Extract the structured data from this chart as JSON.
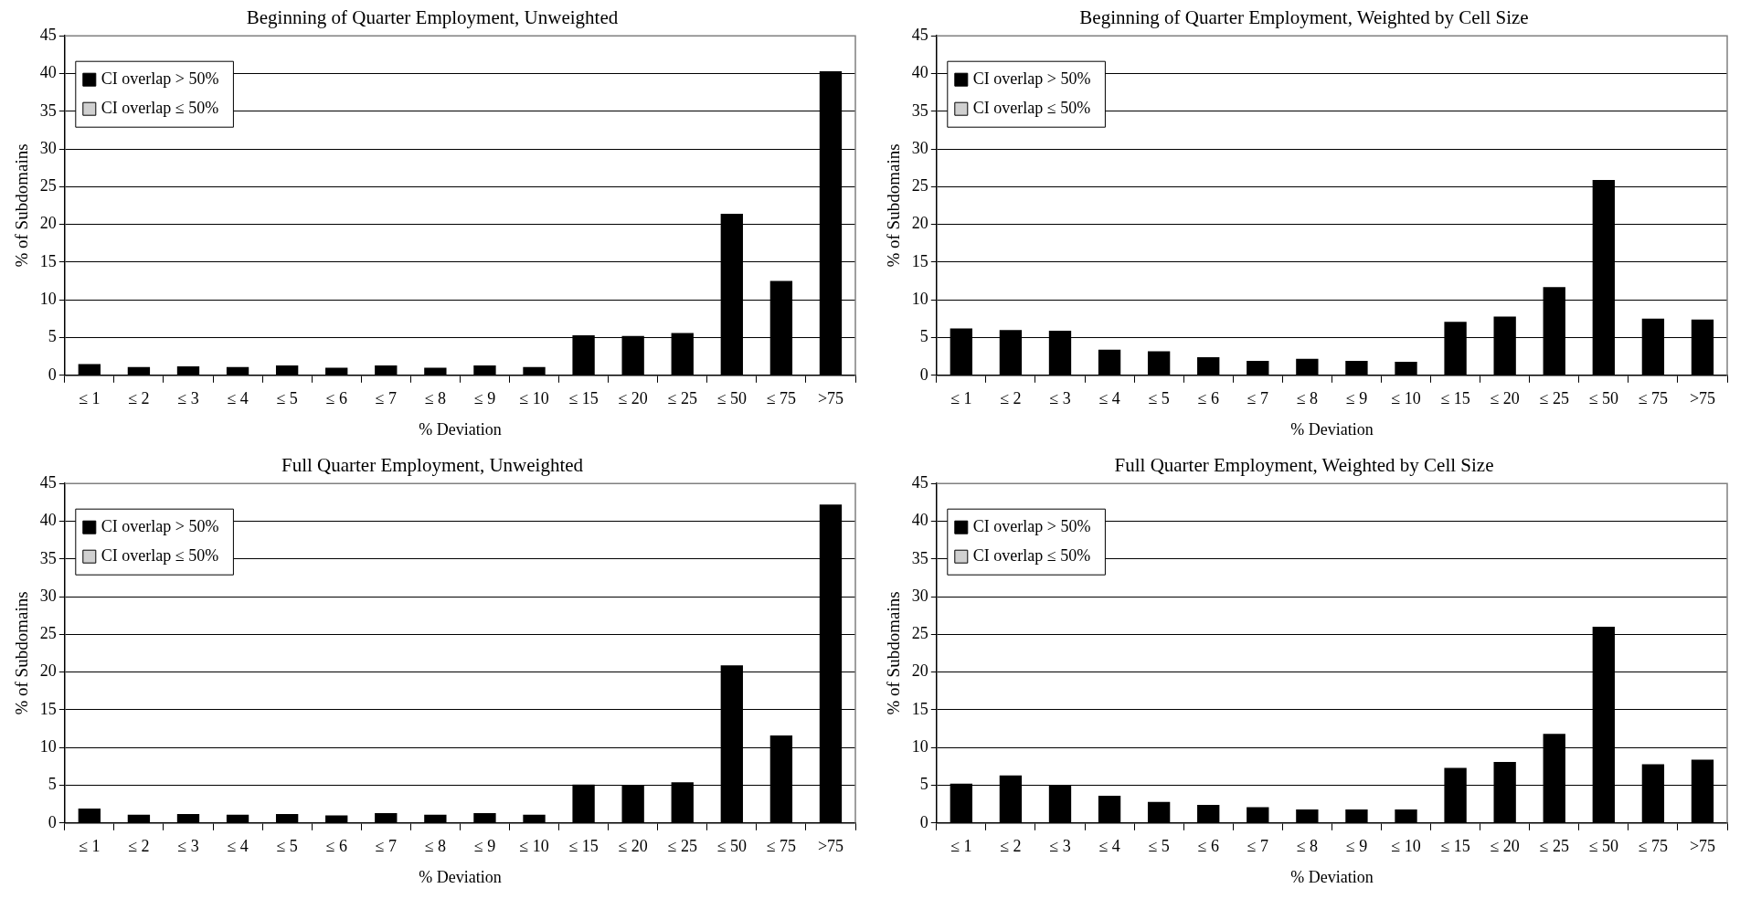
{
  "chart_data": [
    {
      "type": "bar",
      "title": "Beginning of Quarter Employment, Unweighted",
      "xlabel": "% Deviation",
      "ylabel": "% of Subdomains",
      "categories": [
        "≤ 1",
        "≤ 2",
        "≤ 3",
        "≤ 4",
        "≤ 5",
        "≤ 6",
        "≤ 7",
        "≤ 8",
        "≤ 9",
        "≤ 10",
        "≤ 15",
        "≤ 20",
        "≤ 25",
        "≤ 50",
        "≤ 75",
        ">75"
      ],
      "stacked": true,
      "series": [
        {
          "name": "CI overlap > 50%",
          "color": "#000000",
          "values": [
            1.5,
            1.1,
            1.2,
            1.1,
            1.3,
            1.0,
            1.3,
            1.0,
            1.3,
            1.1,
            5.3,
            5.2,
            5.6,
            21.4,
            12.5,
            40.3
          ]
        },
        {
          "name": "CI overlap ≤ 50%",
          "color": "#d0d0d0",
          "values": [
            0,
            0,
            0,
            0,
            0,
            0,
            0,
            0,
            0,
            0,
            0,
            0,
            0,
            0,
            0,
            0
          ]
        }
      ],
      "ylim": [
        0,
        45
      ],
      "yticks": [
        0,
        5,
        10,
        15,
        20,
        25,
        30,
        35,
        40,
        45
      ],
      "grid": "y",
      "legend": "top left"
    },
    {
      "type": "bar",
      "title": "Beginning of Quarter Employment, Weighted by Cell Size",
      "xlabel": "% Deviation",
      "ylabel": "% of Subdomains",
      "categories": [
        "≤ 1",
        "≤ 2",
        "≤ 3",
        "≤ 4",
        "≤ 5",
        "≤ 6",
        "≤ 7",
        "≤ 8",
        "≤ 9",
        "≤ 10",
        "≤ 15",
        "≤ 20",
        "≤ 25",
        "≤ 50",
        "≤ 75",
        ">75"
      ],
      "stacked": true,
      "series": [
        {
          "name": "CI overlap > 50%",
          "color": "#000000",
          "values": [
            6.2,
            6.0,
            5.9,
            3.4,
            3.2,
            2.4,
            1.9,
            2.2,
            1.9,
            1.8,
            7.1,
            7.8,
            11.7,
            25.9,
            7.5,
            7.4
          ]
        },
        {
          "name": "CI overlap ≤ 50%",
          "color": "#d0d0d0",
          "values": [
            0,
            0,
            0,
            0,
            0,
            0,
            0,
            0,
            0,
            0,
            0,
            0,
            0,
            0,
            0,
            0
          ]
        }
      ],
      "ylim": [
        0,
        45
      ],
      "yticks": [
        0,
        5,
        10,
        15,
        20,
        25,
        30,
        35,
        40,
        45
      ],
      "grid": "y",
      "legend": "top left"
    },
    {
      "type": "bar",
      "title": "Full Quarter Employment, Unweighted",
      "xlabel": "% Deviation",
      "ylabel": "% of Subdomains",
      "categories": [
        "≤ 1",
        "≤ 2",
        "≤ 3",
        "≤ 4",
        "≤ 5",
        "≤ 6",
        "≤ 7",
        "≤ 8",
        "≤ 9",
        "≤ 10",
        "≤ 15",
        "≤ 20",
        "≤ 25",
        "≤ 50",
        "≤ 75",
        ">75"
      ],
      "stacked": true,
      "series": [
        {
          "name": "CI overlap > 50%",
          "color": "#000000",
          "values": [
            1.9,
            1.1,
            1.2,
            1.1,
            1.2,
            1.0,
            1.3,
            1.1,
            1.3,
            1.1,
            5.1,
            5.0,
            5.4,
            20.9,
            11.6,
            42.2
          ]
        },
        {
          "name": "CI overlap ≤ 50%",
          "color": "#d0d0d0",
          "values": [
            0,
            0,
            0,
            0,
            0,
            0,
            0,
            0,
            0,
            0,
            0,
            0,
            0,
            0,
            0,
            0
          ]
        }
      ],
      "ylim": [
        0,
        45
      ],
      "yticks": [
        0,
        5,
        10,
        15,
        20,
        25,
        30,
        35,
        40,
        45
      ],
      "grid": "y",
      "legend": "top left"
    },
    {
      "type": "bar",
      "title": "Full Quarter Employment, Weighted by Cell Size",
      "xlabel": "% Deviation",
      "ylabel": "% of Subdomains",
      "categories": [
        "≤ 1",
        "≤ 2",
        "≤ 3",
        "≤ 4",
        "≤ 5",
        "≤ 6",
        "≤ 7",
        "≤ 8",
        "≤ 9",
        "≤ 10",
        "≤ 15",
        "≤ 20",
        "≤ 25",
        "≤ 50",
        "≤ 75",
        ">75"
      ],
      "stacked": true,
      "series": [
        {
          "name": "CI overlap > 50%",
          "color": "#000000",
          "values": [
            5.2,
            6.3,
            5.0,
            3.6,
            2.8,
            2.4,
            2.1,
            1.8,
            1.8,
            1.8,
            7.3,
            8.1,
            11.8,
            26.0,
            7.8,
            8.4
          ]
        },
        {
          "name": "CI overlap ≤ 50%",
          "color": "#d0d0d0",
          "values": [
            0,
            0,
            0,
            0,
            0,
            0,
            0,
            0,
            0,
            0,
            0,
            0,
            0,
            0,
            0,
            0
          ]
        }
      ],
      "ylim": [
        0,
        45
      ],
      "yticks": [
        0,
        5,
        10,
        15,
        20,
        25,
        30,
        35,
        40,
        45
      ],
      "grid": "y",
      "legend": "top left"
    }
  ]
}
